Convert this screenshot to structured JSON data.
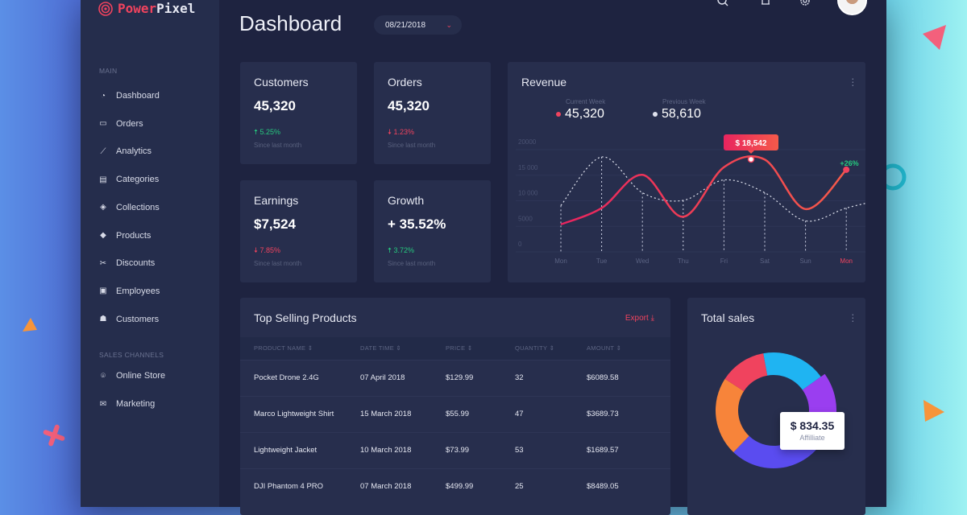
{
  "brand": {
    "name_part1": "Power",
    "name_part2": "Pixel"
  },
  "header": {
    "title": "Dashboard",
    "date": "08/21/2018",
    "icons": [
      "search-icon",
      "bell-icon",
      "gear-icon"
    ]
  },
  "sidebar": {
    "main_label": "MAIN",
    "items": [
      {
        "label": "Dashboard",
        "icon": "dashboard-icon"
      },
      {
        "label": "Orders",
        "icon": "inbox-icon"
      },
      {
        "label": "Analytics",
        "icon": "chart-line-icon"
      },
      {
        "label": "Categories",
        "icon": "archive-icon"
      },
      {
        "label": "Collections",
        "icon": "tags-icon"
      },
      {
        "label": "Products",
        "icon": "tag-icon"
      },
      {
        "label": "Discounts",
        "icon": "scissors-icon"
      },
      {
        "label": "Employees",
        "icon": "briefcase-icon"
      },
      {
        "label": "Customers",
        "icon": "users-icon"
      }
    ],
    "channels_label": "SALES CHANNELS",
    "channels": [
      {
        "label": "Online Store",
        "icon": "store-icon"
      },
      {
        "label": "Marketing",
        "icon": "envelope-icon"
      }
    ]
  },
  "stats": [
    {
      "title": "Customers",
      "value": "45,320",
      "change": "5.25%",
      "direction": "up",
      "since": "Since last month"
    },
    {
      "title": "Orders",
      "value": "45,320",
      "change": "1.23%",
      "direction": "down",
      "since": "Since last month"
    },
    {
      "title": "Earnings",
      "value": "$7,524",
      "change": "7.85%",
      "direction": "down",
      "since": "Since last month"
    },
    {
      "title": "Growth",
      "value": "+ 35.52%",
      "change": "3.72%",
      "direction": "up",
      "since": "Since last month"
    }
  ],
  "revenue": {
    "title": "Revenue",
    "current_label": "Current Week",
    "current_value": "45,320",
    "previous_label": "Previous Week",
    "previous_value": "58,610",
    "tooltip": "$ 18,542",
    "badge": "+26%"
  },
  "chart_data": [
    {
      "type": "line",
      "title": "Revenue",
      "categories": [
        "Mon",
        "Tue",
        "Wed",
        "Thu",
        "Fri",
        "Sat",
        "Sun",
        "Mon"
      ],
      "y_ticks": [
        "0",
        "5000",
        "10 000",
        "15 000",
        "20000"
      ],
      "ylim": [
        0,
        20000
      ],
      "grid": true,
      "series": [
        {
          "name": "Current Week",
          "color": "#f0435e",
          "style": "solid",
          "values": [
            3800,
            7000,
            13500,
            5300,
            15000,
            16500,
            6800,
            14500
          ]
        },
        {
          "name": "Previous Week",
          "color": "#ffffff",
          "style": "dashed",
          "values": [
            7500,
            17000,
            10000,
            8500,
            12500,
            10000,
            4500,
            7000
          ]
        }
      ]
    },
    {
      "type": "pie",
      "title": "Total sales",
      "tooltip_value": "$ 834.35",
      "tooltip_label": "Affilliate",
      "slices": [
        {
          "value": 18,
          "color": "#1fb4f2"
        },
        {
          "value": 19,
          "color": "#9a3ef0"
        },
        {
          "value": 28,
          "color": "#5a4cf0"
        },
        {
          "value": 22,
          "color": "#f7843a"
        },
        {
          "value": 13,
          "color": "#f0435e"
        }
      ]
    }
  ],
  "products": {
    "title": "Top Selling Products",
    "export": "Export",
    "columns": [
      "PRODUCT NAME",
      "DATE TIME",
      "PRICE",
      "QUANTITY",
      "AMOUNT"
    ],
    "rows": [
      [
        "Pocket Drone 2.4G",
        "07 April 2018",
        "$129.99",
        "32",
        "$6089.58"
      ],
      [
        "Marco Lightweight Shirt",
        "15 March 2018",
        "$55.99",
        "47",
        "$3689.73"
      ],
      [
        "Lightweight Jacket",
        "10 March 2018",
        "$73.99",
        "53",
        "$1689.57"
      ],
      [
        "DJI Phantom 4 PRO",
        "07 March 2018",
        "$499.99",
        "25",
        "$8489.05"
      ]
    ]
  },
  "total_sales": {
    "title": "Total sales"
  }
}
